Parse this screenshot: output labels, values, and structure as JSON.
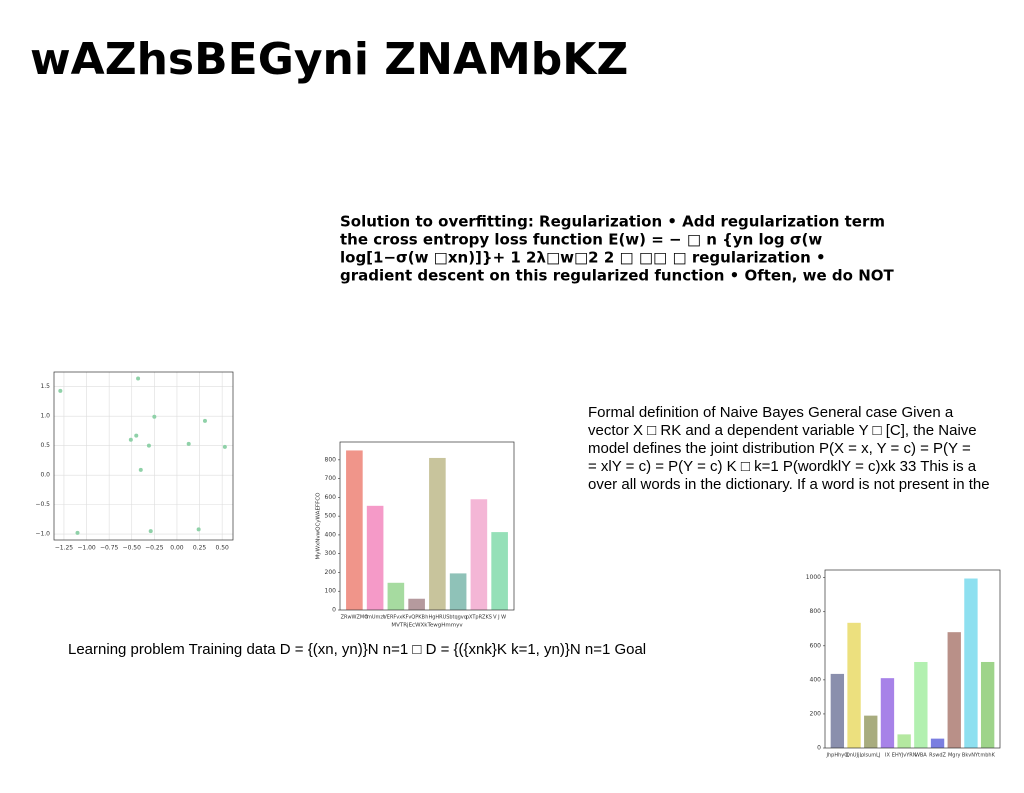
{
  "title": "wAZhsBEGyni ZNAMbKZ",
  "bold_text": [
    "Solution to overfitting: Regularization • Add regularization term",
    "the cross entropy loss function E(w) = − □ n {yn log σ(w",
    "log[1−σ(w □xn)]}+ 1 2λ□w□2 2 □ □□ □ regularization •",
    "gradient descent on this regularized function • Often, we do NOT"
  ],
  "right_text": [
    "Formal definition of Naive Bayes General case Given a",
    "vector X □ RK and a dependent variable Y □ [C], the Naive",
    "model defines the joint distribution P(X = x, Y = c) = P(Y =",
    "= xlY = c) = P(Y = c) K □ k=1 P(wordklY = c)xk 33 This is a",
    "over all words in the dictionary. If a word is not present in the"
  ],
  "bottom_text": "Learning problem Training data D = {(xn, yn)}N n=1 □ D = {({xnk}K k=1, yn)}N n=1 Goal",
  "chart_data": [
    {
      "type": "scatter",
      "color": "#8fd1a8",
      "grid": true,
      "x": [
        -1.29,
        -0.43,
        -0.25,
        0.31,
        -0.45,
        -0.51,
        -0.31,
        0.13,
        0.53,
        -0.4,
        -1.1,
        -0.29,
        0.24
      ],
      "values": [
        1.43,
        1.64,
        0.99,
        0.92,
        0.67,
        0.6,
        0.5,
        0.53,
        0.48,
        0.09,
        -0.98,
        -0.95,
        -0.92
      ],
      "xlim": [
        -1.36,
        0.62
      ],
      "ylim": [
        -1.1,
        1.75
      ],
      "xticks": [
        {
          "value": -1.25,
          "label": "−1.25"
        },
        {
          "value": -1.0,
          "label": "−1.00"
        },
        {
          "value": -0.75,
          "label": "−0.75"
        },
        {
          "value": -0.5,
          "label": "−0.50"
        },
        {
          "value": -0.25,
          "label": "−0.25"
        },
        {
          "value": 0,
          "label": "0.00"
        },
        {
          "value": 0.25,
          "label": "0.25"
        },
        {
          "value": 0.5,
          "label": "0.50"
        }
      ],
      "yticks": [
        {
          "value": -1.0,
          "label": "−1.0"
        },
        {
          "value": -0.5,
          "label": "−0.5"
        },
        {
          "value": 0,
          "label": "0.0"
        },
        {
          "value": 0.5,
          "label": "0.5"
        },
        {
          "value": 1.0,
          "label": "1.0"
        },
        {
          "value": 1.5,
          "label": "1.5"
        }
      ]
    },
    {
      "type": "bar",
      "xlabel": "MVTRjEcWXkTewgHmmyv",
      "ylabel": "MyWxNvwQCyWAEFFCO",
      "categories": [
        "ZRwWZMO",
        "fmUmzt",
        "VERFvxKF",
        "vQPKB",
        "hHgHRUS",
        "btqgvq",
        "pXTpRZKS",
        "V J W"
      ],
      "values": [
        850,
        555,
        145,
        60,
        810,
        195,
        590,
        415
      ],
      "colors": [
        "#f0958a",
        "#f59ac8",
        "#a6dba0",
        "#b59a9e",
        "#c8c49c",
        "#8fc2b8",
        "#f4b6d6",
        "#95e0b8"
      ],
      "ylim": [
        0,
        895
      ],
      "yticks": [
        0,
        100,
        200,
        300,
        400,
        500,
        600,
        700,
        800
      ]
    },
    {
      "type": "bar",
      "categories": [
        "JhpHhyQ",
        "QnUJjL",
        "olsumLJ",
        "IX",
        "EHYJvYRN",
        "WBA",
        "RswdZ",
        "Mgry",
        "BkvNYt",
        "mbhK"
      ],
      "values": [
        435,
        735,
        190,
        410,
        80,
        505,
        55,
        680,
        995,
        505
      ],
      "colors": [
        "#8a8fad",
        "#ece07e",
        "#a8ac7e",
        "#a782e8",
        "#b4e8a0",
        "#b2f0b0",
        "#7a7ee0",
        "#b99088",
        "#8ee0f0",
        "#9ed48a"
      ],
      "ylim": [
        0,
        1045
      ],
      "yticks": [
        0,
        200,
        400,
        600,
        800,
        1000
      ]
    }
  ]
}
